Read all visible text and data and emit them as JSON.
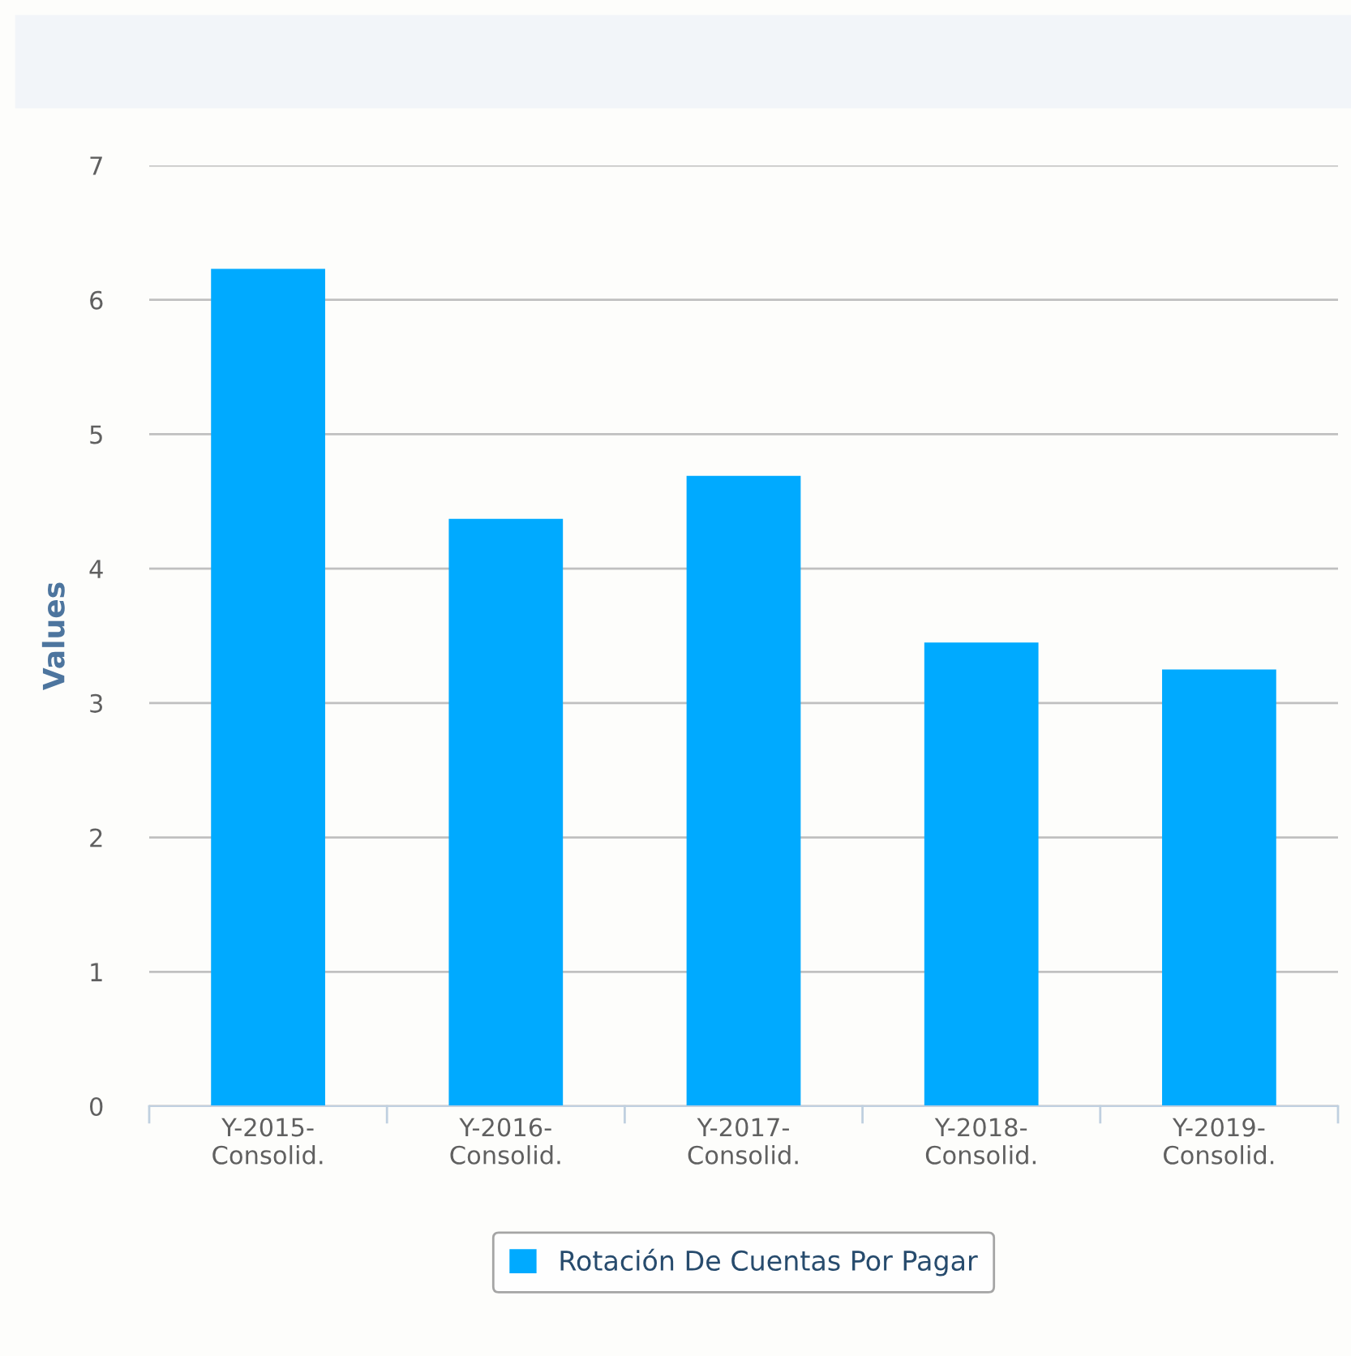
{
  "chart_data": {
    "type": "bar",
    "ylabel": "Values",
    "categories": [
      "Y-2015-\nConsolid.",
      "Y-2016-\nConsolid.",
      "Y-2017-\nConsolid.",
      "Y-2018-\nConsolid.",
      "Y-2019-\nConsolid."
    ],
    "series": [
      {
        "name": "Rotación De Cuentas Por Pagar",
        "color": "#00aaff",
        "values": [
          6.23,
          4.37,
          4.69,
          3.45,
          3.25
        ]
      }
    ],
    "ylim": [
      0,
      7
    ],
    "yticks": [
      0,
      1,
      2,
      3,
      4,
      5,
      6,
      7
    ],
    "grid": "y",
    "legend": "bottom"
  }
}
